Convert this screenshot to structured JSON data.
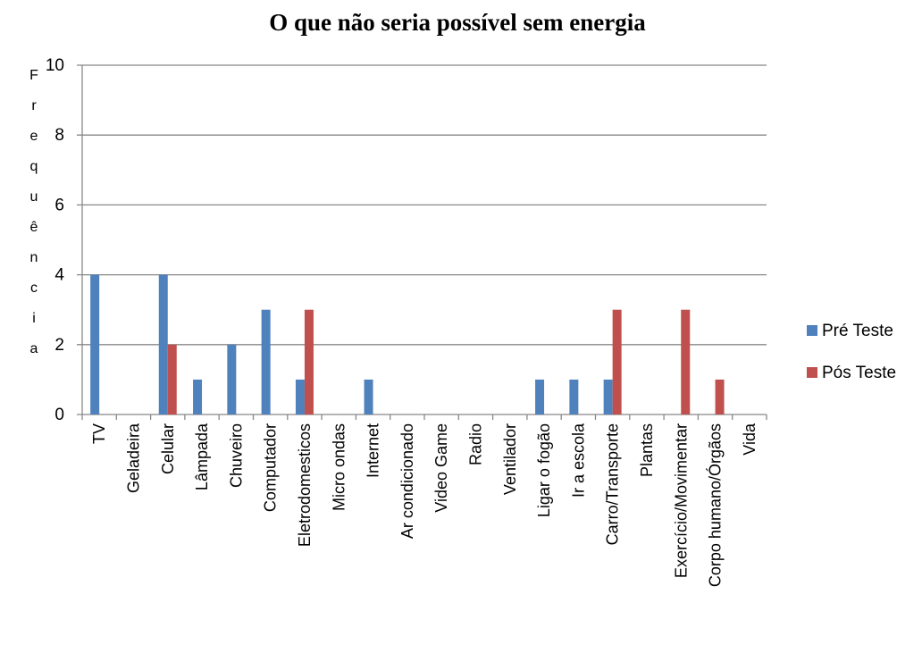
{
  "chart_data": {
    "type": "bar",
    "title": "O que não seria possível sem energia",
    "y_label": "Frequência",
    "categories": [
      "TV",
      "Geladeira",
      "Celular",
      "Lâmpada",
      "Chuveiro",
      "Computador",
      "Eletrodomesticos",
      "Micro ondas",
      "Internet",
      "Ar condicionado",
      "Video Game",
      "Radio",
      "Ventilador",
      "Ligar o fogão",
      "Ir a escola",
      "Carro/Transporte",
      "Plantas",
      "Exercício/Movimentar",
      "Corpo humano/Órgãos",
      "Vida"
    ],
    "series": [
      {
        "name": "Pré Teste",
        "color": "#4f81bd",
        "values": [
          4,
          0,
          4,
          1,
          2,
          3,
          1,
          0,
          1,
          0,
          0,
          0,
          0,
          1,
          1,
          1,
          0,
          0,
          0,
          0
        ]
      },
      {
        "name": "Pós Teste",
        "color": "#c0504d",
        "values": [
          0,
          0,
          2,
          0,
          0,
          0,
          3,
          0,
          0,
          0,
          0,
          0,
          0,
          0,
          0,
          3,
          0,
          3,
          1,
          0
        ]
      }
    ],
    "ylim": [
      0,
      10
    ],
    "yticks": [
      0,
      2,
      4,
      6,
      8,
      10
    ],
    "grid": true,
    "legend": "right"
  }
}
